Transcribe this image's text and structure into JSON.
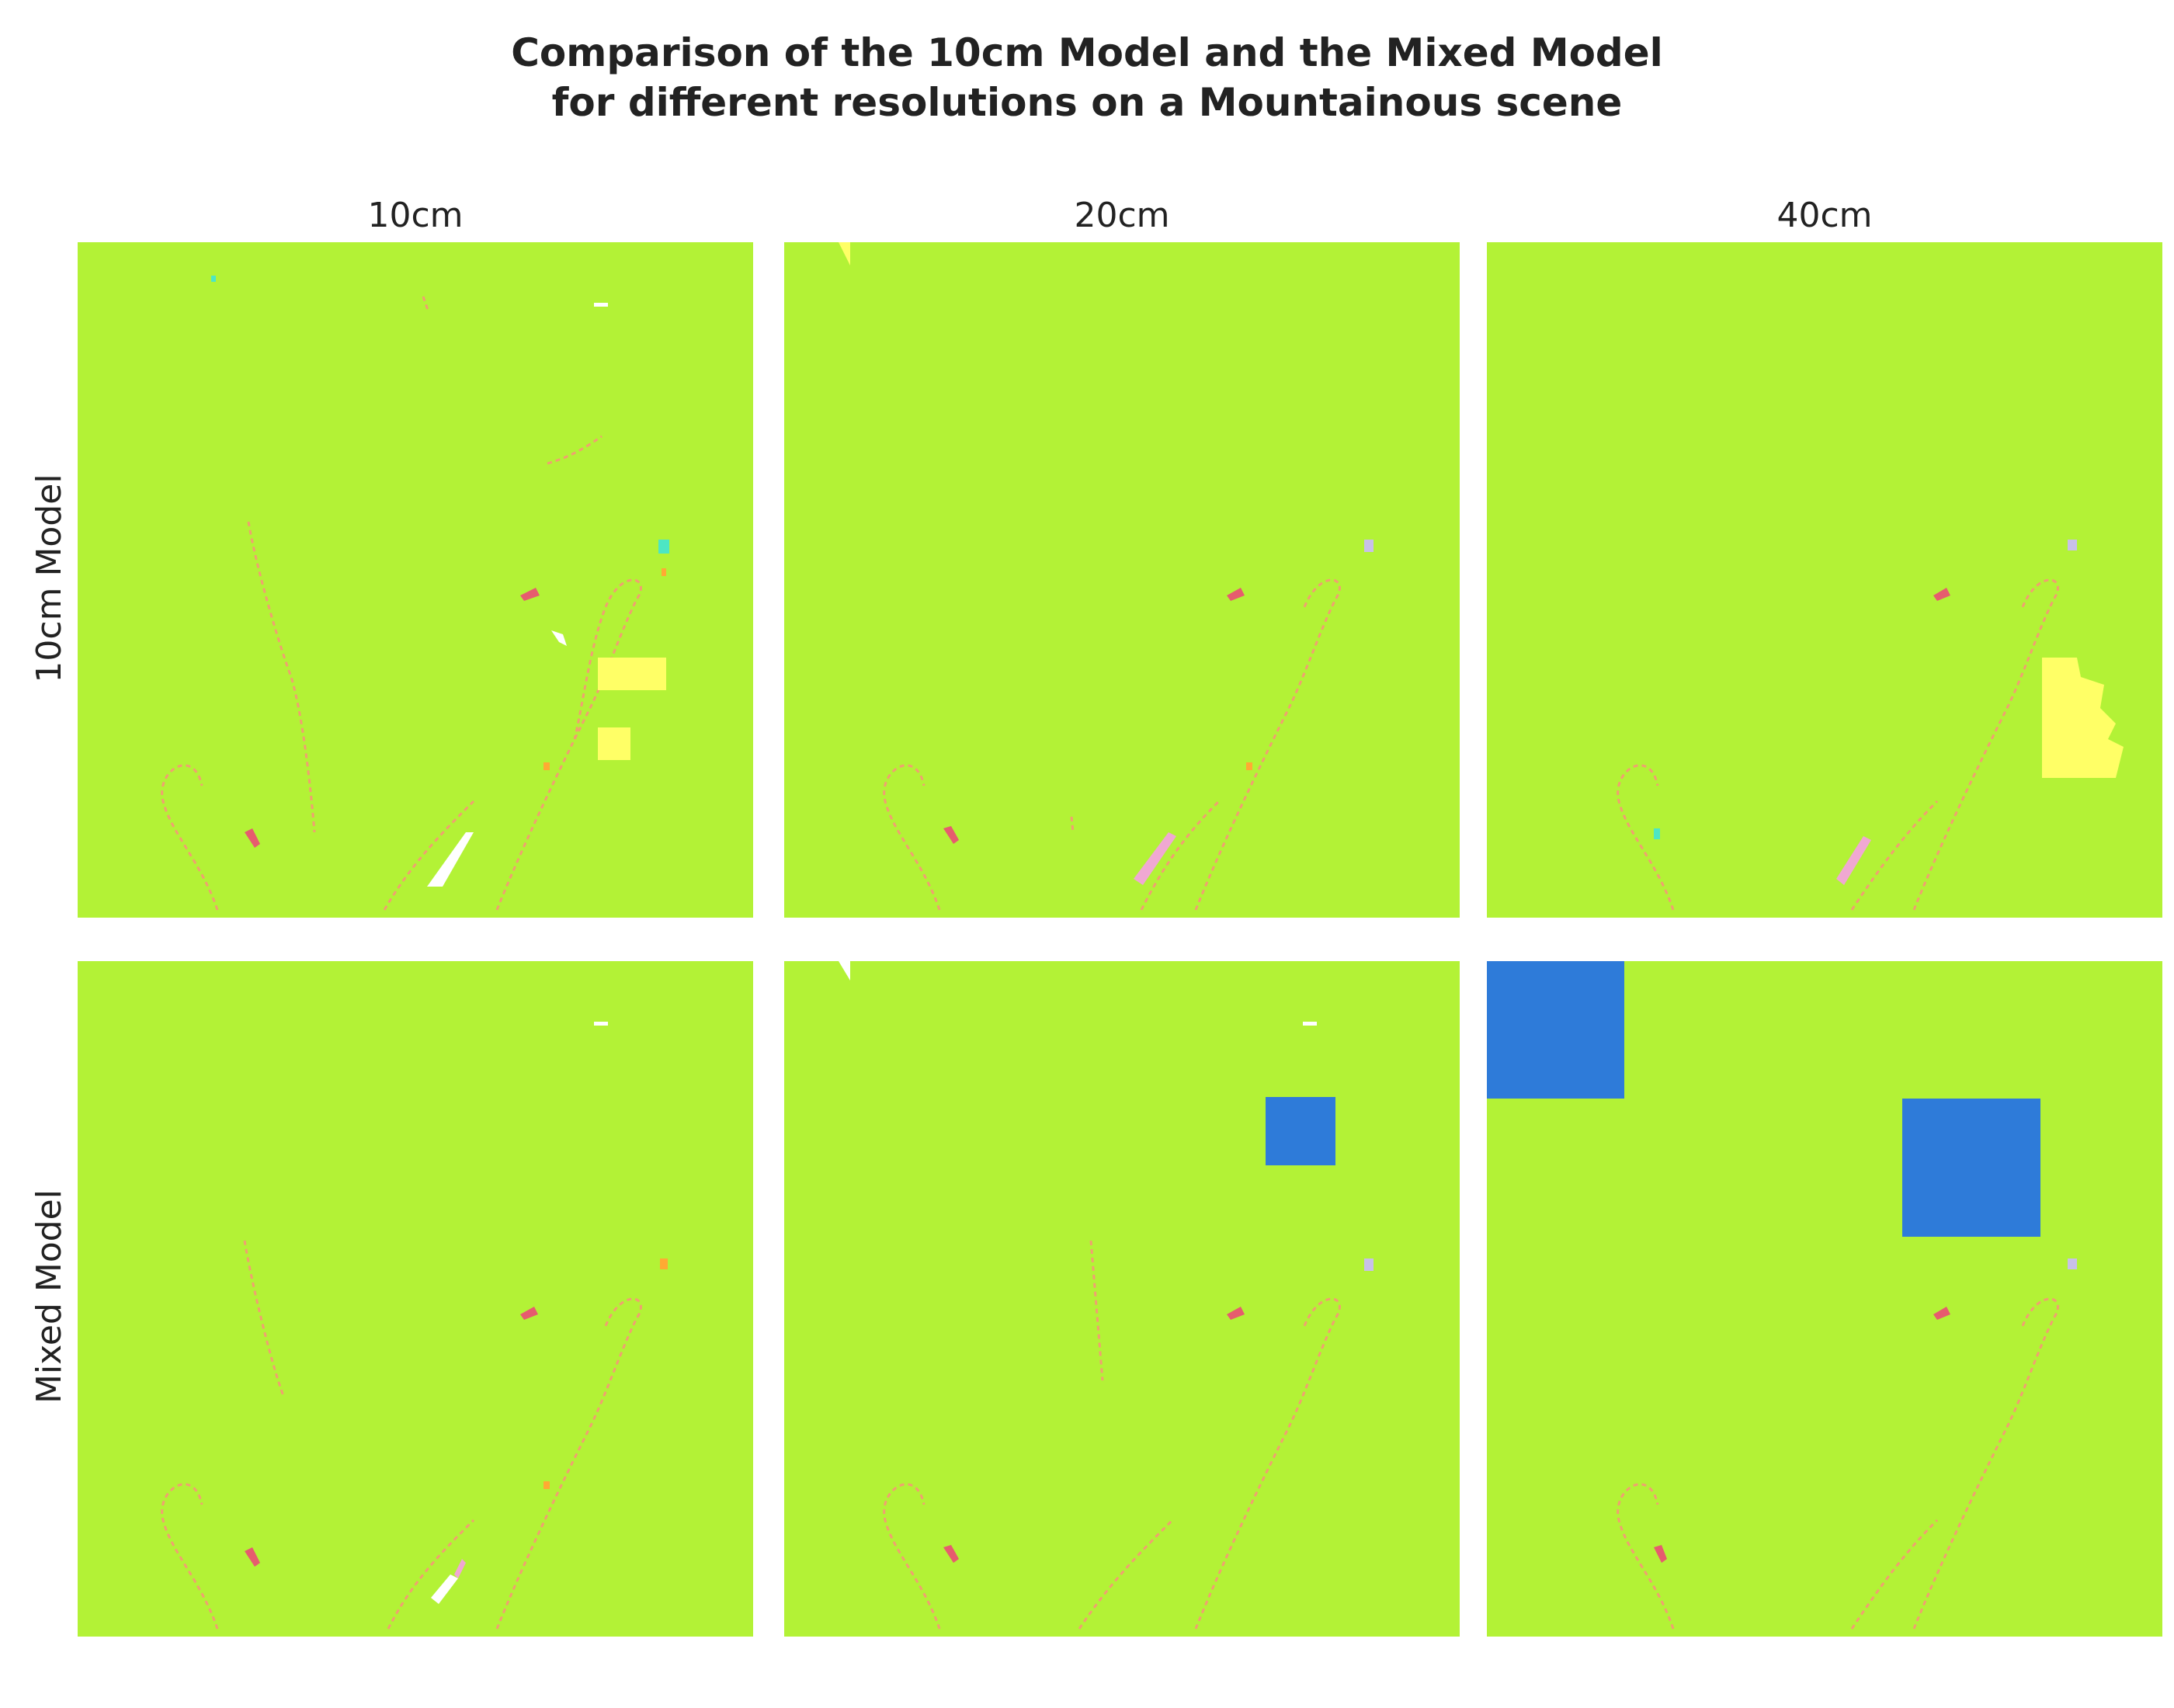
{
  "title_line1": "Comparison of the 10cm Model and the Mixed Model",
  "title_line2": "for different resolutions on a Mountainous scene",
  "columns": [
    "10cm",
    "20cm",
    "40cm"
  ],
  "rows": [
    "10cm Model",
    "Mixed Model"
  ],
  "colors": {
    "background_class": "#b3f236",
    "yellow_class": "#ffff66",
    "blue_class": "#2e7bd9",
    "red_class": "#e65c6e",
    "pink_class": "#f0a8d2",
    "cyan_class": "#4de6c4",
    "orange_class": "#ffaa33",
    "lavender_class": "#c8c0e8",
    "white": "#ffffff"
  }
}
